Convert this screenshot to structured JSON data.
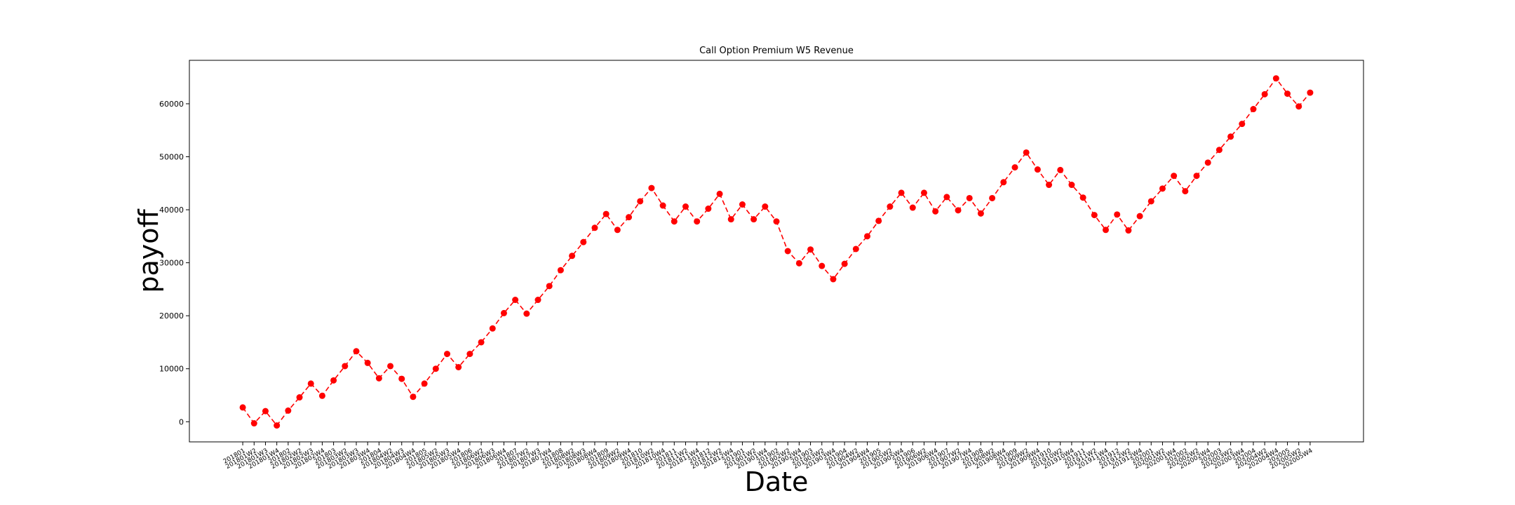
{
  "chart_data": {
    "type": "line",
    "title": "Call Option Premium W5 Revenue",
    "xlabel": "Date",
    "ylabel": "payoff",
    "categories": [
      "201801",
      "201801W2",
      "201801W3",
      "201801W4",
      "201802",
      "201802W2",
      "201802W3",
      "201802W4",
      "201803",
      "201803W2",
      "201803W3",
      "201803W4",
      "201804",
      "201804W2",
      "201804W3",
      "201804W4",
      "201805",
      "201805W2",
      "201805W3",
      "201805W4",
      "201806",
      "201806W2",
      "201806W3",
      "201806W4",
      "201807",
      "201807W2",
      "201807W3",
      "201807W4",
      "201808",
      "201808W2",
      "201808W3",
      "201808W4",
      "201809",
      "201809W2",
      "201809W4",
      "201810",
      "201810W2",
      "201810W4",
      "201811",
      "201811W2",
      "201811W4",
      "201812",
      "201812W2",
      "201812W4",
      "201901",
      "201901W2",
      "201901W4",
      "201902",
      "201902W2",
      "201902W4",
      "201903",
      "201903W2",
      "201903W4",
      "201904",
      "201904W2",
      "201904W4",
      "201905",
      "201905W2",
      "201905W4",
      "201906",
      "201906W2",
      "201906W4",
      "201907",
      "201907W2",
      "201907W4",
      "201908",
      "201908W2",
      "201908W4",
      "201909",
      "201909W2",
      "201909W4",
      "201910",
      "201910W2",
      "201910W4",
      "201911",
      "201911W2",
      "201911W4",
      "201912",
      "201912W2",
      "201912W4",
      "202001",
      "202001W2",
      "202001W4",
      "202002",
      "202002W2",
      "202002W4",
      "202003",
      "202003W2",
      "202003W4",
      "202004",
      "202004W2",
      "202004W4",
      "202005",
      "202005W2",
      "202005W4"
    ],
    "series": [
      {
        "name": "payoff",
        "color": "#ff0000",
        "values": [
          2700,
          -300,
          2000,
          -700,
          2100,
          4600,
          7200,
          4900,
          7800,
          10500,
          13300,
          11100,
          8200,
          10500,
          8100,
          4700,
          7200,
          10000,
          12800,
          10300,
          12800,
          15000,
          17600,
          20500,
          23000,
          20400,
          23000,
          25600,
          28600,
          31300,
          33900,
          36600,
          39200,
          36200,
          38600,
          41600,
          44100,
          40800,
          37800,
          40600,
          37800,
          40200,
          43000,
          38200,
          41000,
          38200,
          40600,
          37800,
          32200,
          29900,
          32500,
          29400,
          26900,
          29800,
          32600,
          35000,
          37900,
          40600,
          43200,
          40400,
          43200,
          39700,
          42400,
          39900,
          42200,
          39300,
          42200,
          45200,
          48000,
          50800,
          47600,
          44700,
          47500,
          44700,
          42300,
          39000,
          36200,
          39100,
          36100,
          38800,
          41600,
          44000,
          46400,
          43500,
          46400,
          48900,
          51300,
          53800,
          56200,
          59000,
          61800,
          64800,
          61900,
          59500,
          62100
        ]
      }
    ],
    "ylim": [
      -3800,
      68200
    ],
    "yticks": [
      0,
      10000,
      20000,
      30000,
      40000,
      50000,
      60000
    ],
    "grid": false
  }
}
